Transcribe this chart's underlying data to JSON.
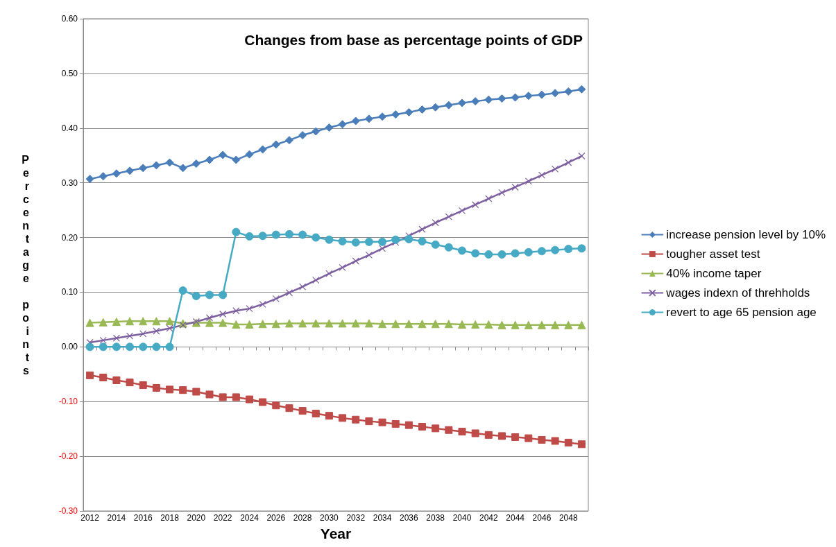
{
  "chart_data": {
    "type": "line",
    "title": "Changes from base as percentage points of GDP",
    "xlabel": "Year",
    "ylabel": "Percentage points",
    "categories": [
      "2012",
      null,
      "2014",
      null,
      "2016",
      null,
      "2018",
      null,
      "2020",
      null,
      "2022",
      null,
      "2024",
      null,
      "2026",
      null,
      "2028",
      null,
      "2030",
      null,
      "2032",
      null,
      "2034",
      null,
      "2036",
      null,
      "2038",
      null,
      "2040",
      null,
      "2042",
      null,
      "2044",
      null,
      "2046",
      null,
      "2048",
      null
    ],
    "ylim": [
      -0.3,
      0.6
    ],
    "yticks": [
      {
        "value": -0.3,
        "label": "-0.30"
      },
      {
        "value": -0.2,
        "label": "-0.20"
      },
      {
        "value": -0.1,
        "label": "-0.10"
      },
      {
        "value": 0,
        "label": "0.00"
      },
      {
        "value": 0.1,
        "label": "0.10"
      },
      {
        "value": 0.2,
        "label": "0.20"
      },
      {
        "value": 0.3,
        "label": "0.30"
      },
      {
        "value": 0.4,
        "label": "0.40"
      },
      {
        "value": 0.5,
        "label": "0.50"
      },
      {
        "value": 0.6,
        "label": "0.60"
      }
    ],
    "grid": "y",
    "legend": "right",
    "line_style": "solid",
    "series": [
      {
        "name": "increase pension level by 10%",
        "color": "#4a7ebb",
        "marker": "diamond",
        "values": [
          0.307,
          0.312,
          0.317,
          0.322,
          0.327,
          0.332,
          0.337,
          0.327,
          0.335,
          0.342,
          0.351,
          0.342,
          0.352,
          0.361,
          0.37,
          0.378,
          0.387,
          0.394,
          0.401,
          0.407,
          0.413,
          0.417,
          0.421,
          0.425,
          0.429,
          0.434,
          0.438,
          0.442,
          0.446,
          0.449,
          0.452,
          0.454,
          0.456,
          0.459,
          0.461,
          0.464,
          0.467,
          0.471
        ]
      },
      {
        "name": "tougher asset test",
        "color": "#be4b48",
        "marker": "square",
        "values": [
          -0.052,
          -0.056,
          -0.061,
          -0.065,
          -0.07,
          -0.075,
          -0.078,
          -0.079,
          -0.082,
          -0.087,
          -0.092,
          -0.092,
          -0.096,
          -0.101,
          -0.107,
          -0.112,
          -0.117,
          -0.122,
          -0.126,
          -0.13,
          -0.133,
          -0.136,
          -0.138,
          -0.141,
          -0.143,
          -0.146,
          -0.149,
          -0.152,
          -0.155,
          -0.158,
          -0.161,
          -0.163,
          -0.165,
          -0.167,
          -0.17,
          -0.172,
          -0.175,
          -0.178
        ]
      },
      {
        "name": "40% income taper",
        "color": "#98b954",
        "marker": "triangle",
        "values": [
          0.044,
          0.045,
          0.046,
          0.047,
          0.047,
          0.047,
          0.047,
          0.043,
          0.044,
          0.044,
          0.044,
          0.041,
          0.041,
          0.042,
          0.042,
          0.043,
          0.043,
          0.043,
          0.043,
          0.043,
          0.043,
          0.043,
          0.042,
          0.042,
          0.042,
          0.042,
          0.042,
          0.042,
          0.041,
          0.041,
          0.041,
          0.04,
          0.04,
          0.04,
          0.04,
          0.04,
          0.04,
          0.04
        ]
      },
      {
        "name": "wages indexn of threhholds",
        "color": "#7d5fa0",
        "marker": "cross",
        "values": [
          0.008,
          0.012,
          0.016,
          0.02,
          0.024,
          0.029,
          0.034,
          0.04,
          0.046,
          0.053,
          0.06,
          0.066,
          0.07,
          0.078,
          0.088,
          0.099,
          0.11,
          0.122,
          0.134,
          0.145,
          0.157,
          0.168,
          0.18,
          0.191,
          0.203,
          0.215,
          0.227,
          0.238,
          0.249,
          0.26,
          0.271,
          0.282,
          0.292,
          0.303,
          0.314,
          0.325,
          0.337,
          0.349
        ]
      },
      {
        "name": "revert to age 65 pension age",
        "color": "#46aac5",
        "marker": "circle",
        "values": [
          0,
          0,
          0,
          0,
          0,
          0,
          0,
          0.103,
          0.093,
          0.095,
          0.095,
          0.21,
          0.202,
          0.203,
          0.205,
          0.206,
          0.205,
          0.2,
          0.196,
          0.193,
          0.191,
          0.192,
          0.192,
          0.196,
          0.197,
          0.193,
          0.187,
          0.182,
          0.176,
          0.171,
          0.169,
          0.169,
          0.171,
          0.173,
          0.175,
          0.177,
          0.179,
          0.18
        ]
      }
    ]
  }
}
